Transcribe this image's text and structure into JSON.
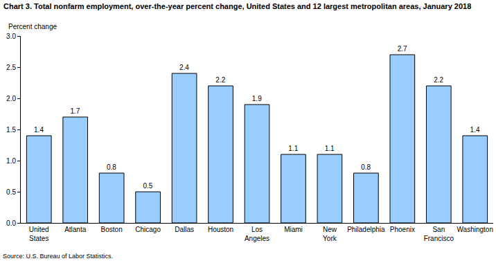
{
  "chart_data": {
    "type": "bar",
    "title": "Chart 3. Total nonfarm employment, over-the-year percent change, United States and 12 largest metropolitan areas, January 2018",
    "y_label": "Percent change",
    "source": "Source: U.S. Bureau of Labor Statistics.",
    "categories": [
      "United States",
      "Atlanta",
      "Boston",
      "Chicago",
      "Dallas",
      "Houston",
      "Los Angeles",
      "Miami",
      "New York",
      "Philadelphia",
      "Phoenix",
      "San Francisco",
      "Washington"
    ],
    "values": [
      1.4,
      1.7,
      0.8,
      0.5,
      2.4,
      2.2,
      1.9,
      1.1,
      1.1,
      0.8,
      2.7,
      2.2,
      1.4
    ],
    "color": "#99ccff",
    "ylim": [
      0,
      3
    ],
    "yticks": [
      {
        "value": 0,
        "label": "0.0"
      },
      0.5,
      {
        "value": 1,
        "label": "1.0"
      },
      1.5,
      {
        "value": 2,
        "label": "2.0"
      },
      2.5,
      {
        "value": 3,
        "label": "3.0"
      }
    ],
    "grid": false,
    "data_labels": true
  }
}
